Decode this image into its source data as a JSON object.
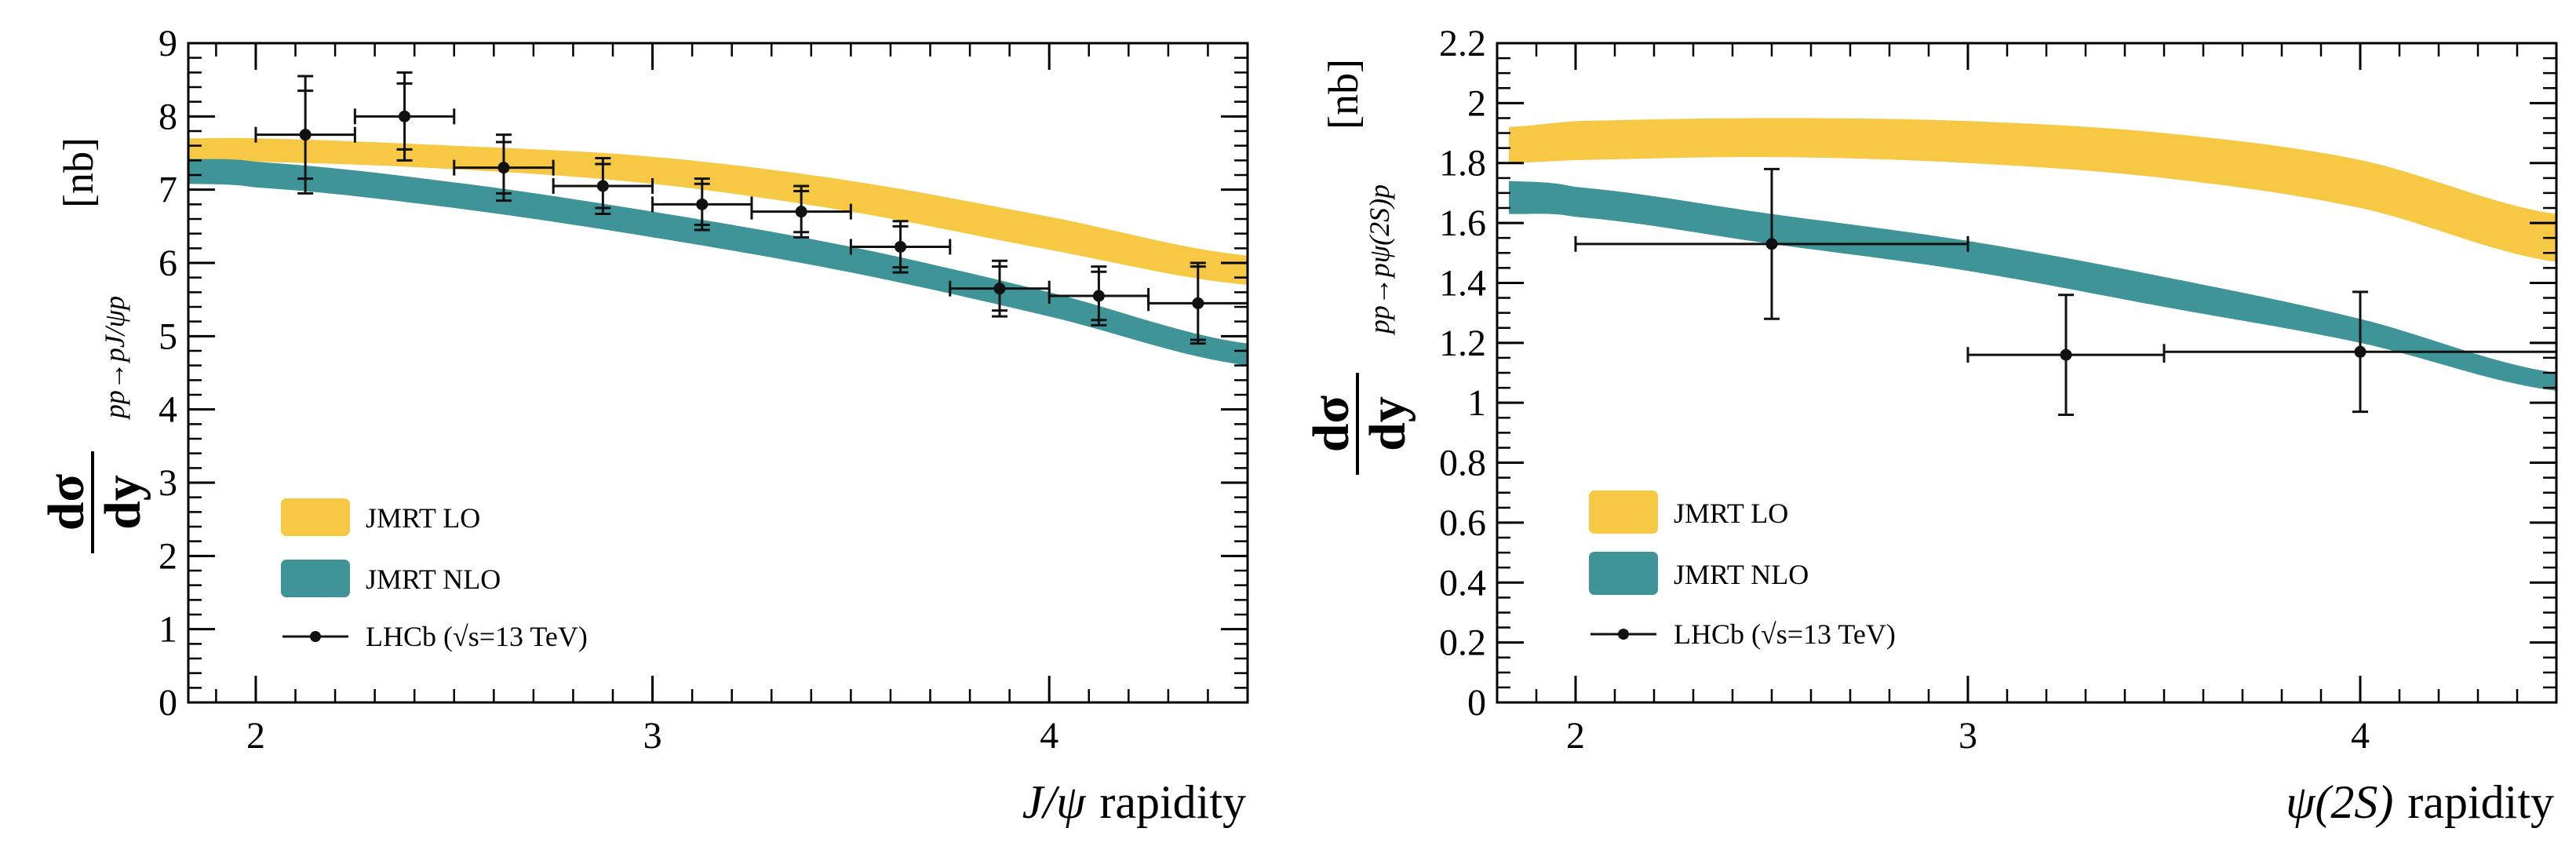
{
  "colors": {
    "lo": "#f6c843",
    "nlo": "#3f9497",
    "data": "#111111",
    "axis": "#000000"
  },
  "chart_data": [
    {
      "type": "line",
      "title": "",
      "xlabel_italic": "J/ψ",
      "xlabel_rest": "rapidity",
      "ylabel_main": "dσ/dy",
      "ylabel_num": "dσ",
      "ylabel_den": "dy",
      "ylabel_sub": "pp→pJ/ψp",
      "ylabel_unit": "[nb]",
      "xlim": [
        1.83,
        4.5
      ],
      "ylim": [
        0,
        9
      ],
      "xticks": [
        2,
        3,
        4
      ],
      "xtick_labels": [
        "2",
        "3",
        "4"
      ],
      "yticks": [
        0,
        1,
        2,
        3,
        4,
        5,
        6,
        7,
        8,
        9
      ],
      "ytick_labels": [
        "0",
        "1",
        "2",
        "3",
        "4",
        "5",
        "6",
        "7",
        "8",
        "9"
      ],
      "legend_position": "bottom-left",
      "legend": [
        "JMRT LO",
        "JMRT NLO",
        "LHCb (√s=13 TeV)"
      ],
      "bands": [
        {
          "name": "JMRT LO",
          "x": [
            1.83,
            2.0,
            2.5,
            3.0,
            3.5,
            4.0,
            4.5
          ],
          "low": [
            7.38,
            7.38,
            7.28,
            7.08,
            6.7,
            6.18,
            5.7
          ],
          "high": [
            7.7,
            7.7,
            7.6,
            7.45,
            7.12,
            6.63,
            6.1
          ]
        },
        {
          "name": "JMRT NLO",
          "x": [
            1.83,
            2.0,
            2.5,
            3.0,
            3.5,
            4.0,
            4.5
          ],
          "low": [
            7.08,
            7.03,
            6.75,
            6.35,
            5.87,
            5.27,
            4.6
          ],
          "high": [
            7.42,
            7.38,
            7.1,
            6.7,
            6.22,
            5.6,
            4.9
          ]
        }
      ],
      "series": [
        {
          "name": "LHCb (√s=13 TeV)",
          "x": [
            2.125,
            2.375,
            2.625,
            2.875,
            3.125,
            3.375,
            3.625,
            3.875,
            4.125,
            4.375
          ],
          "y": [
            7.75,
            8.0,
            7.3,
            7.05,
            6.8,
            6.7,
            6.22,
            5.65,
            5.55,
            5.45
          ],
          "xerr": [
            0.125,
            0.125,
            0.125,
            0.125,
            0.125,
            0.125,
            0.125,
            0.125,
            0.125,
            0.125
          ],
          "yerr_stat": [
            0.6,
            0.45,
            0.35,
            0.3,
            0.28,
            0.28,
            0.28,
            0.3,
            0.33,
            0.5
          ],
          "yerr_tot": [
            0.8,
            0.6,
            0.45,
            0.38,
            0.35,
            0.35,
            0.35,
            0.38,
            0.4,
            0.55
          ]
        }
      ]
    },
    {
      "type": "line",
      "title": "",
      "xlabel_italic": "ψ(2S)",
      "xlabel_rest": "rapidity",
      "ylabel_main": "dσ/dy",
      "ylabel_num": "dσ",
      "ylabel_den": "dy",
      "ylabel_sub": "pp→pψ(2S)p",
      "ylabel_unit": "[nb]",
      "xlim": [
        1.8,
        4.5
      ],
      "ylim": [
        0,
        2.2
      ],
      "xticks": [
        2,
        3,
        4
      ],
      "xtick_labels": [
        "2",
        "3",
        "4"
      ],
      "yticks": [
        0,
        0.2,
        0.4,
        0.6,
        0.8,
        1.0,
        1.2,
        1.4,
        1.6,
        1.8,
        2.0,
        2.2
      ],
      "ytick_labels": [
        "0",
        "0.2",
        "0.4",
        "0.6",
        "0.8",
        "1",
        "1.2",
        "1.4",
        "1.6",
        "1.8",
        "2",
        "2.2"
      ],
      "legend_position": "bottom-left",
      "legend": [
        "JMRT LO",
        "JMRT NLO",
        "LHCb (√s=13 TeV)"
      ],
      "bands": [
        {
          "name": "JMRT LO",
          "x": [
            1.83,
            2.0,
            2.5,
            3.0,
            3.5,
            4.0,
            4.5
          ],
          "low": [
            1.8,
            1.81,
            1.82,
            1.8,
            1.75,
            1.65,
            1.47
          ],
          "high": [
            1.92,
            1.94,
            1.95,
            1.94,
            1.9,
            1.81,
            1.63
          ]
        },
        {
          "name": "JMRT NLO",
          "x": [
            1.83,
            2.0,
            2.5,
            3.0,
            3.5,
            4.0,
            4.5
          ],
          "low": [
            1.63,
            1.62,
            1.53,
            1.44,
            1.32,
            1.2,
            1.04
          ],
          "high": [
            1.74,
            1.72,
            1.63,
            1.54,
            1.42,
            1.28,
            1.1
          ]
        }
      ],
      "series": [
        {
          "name": "LHCb (√s=13 TeV)",
          "x": [
            2.5,
            3.25,
            4.0
          ],
          "y": [
            1.53,
            1.16,
            1.17
          ],
          "xerr": [
            0.5,
            0.25,
            0.5
          ],
          "yerr_stat": [
            0.25,
            0.2,
            0.2
          ],
          "yerr_tot": [
            0.25,
            0.2,
            0.2
          ]
        }
      ]
    }
  ]
}
